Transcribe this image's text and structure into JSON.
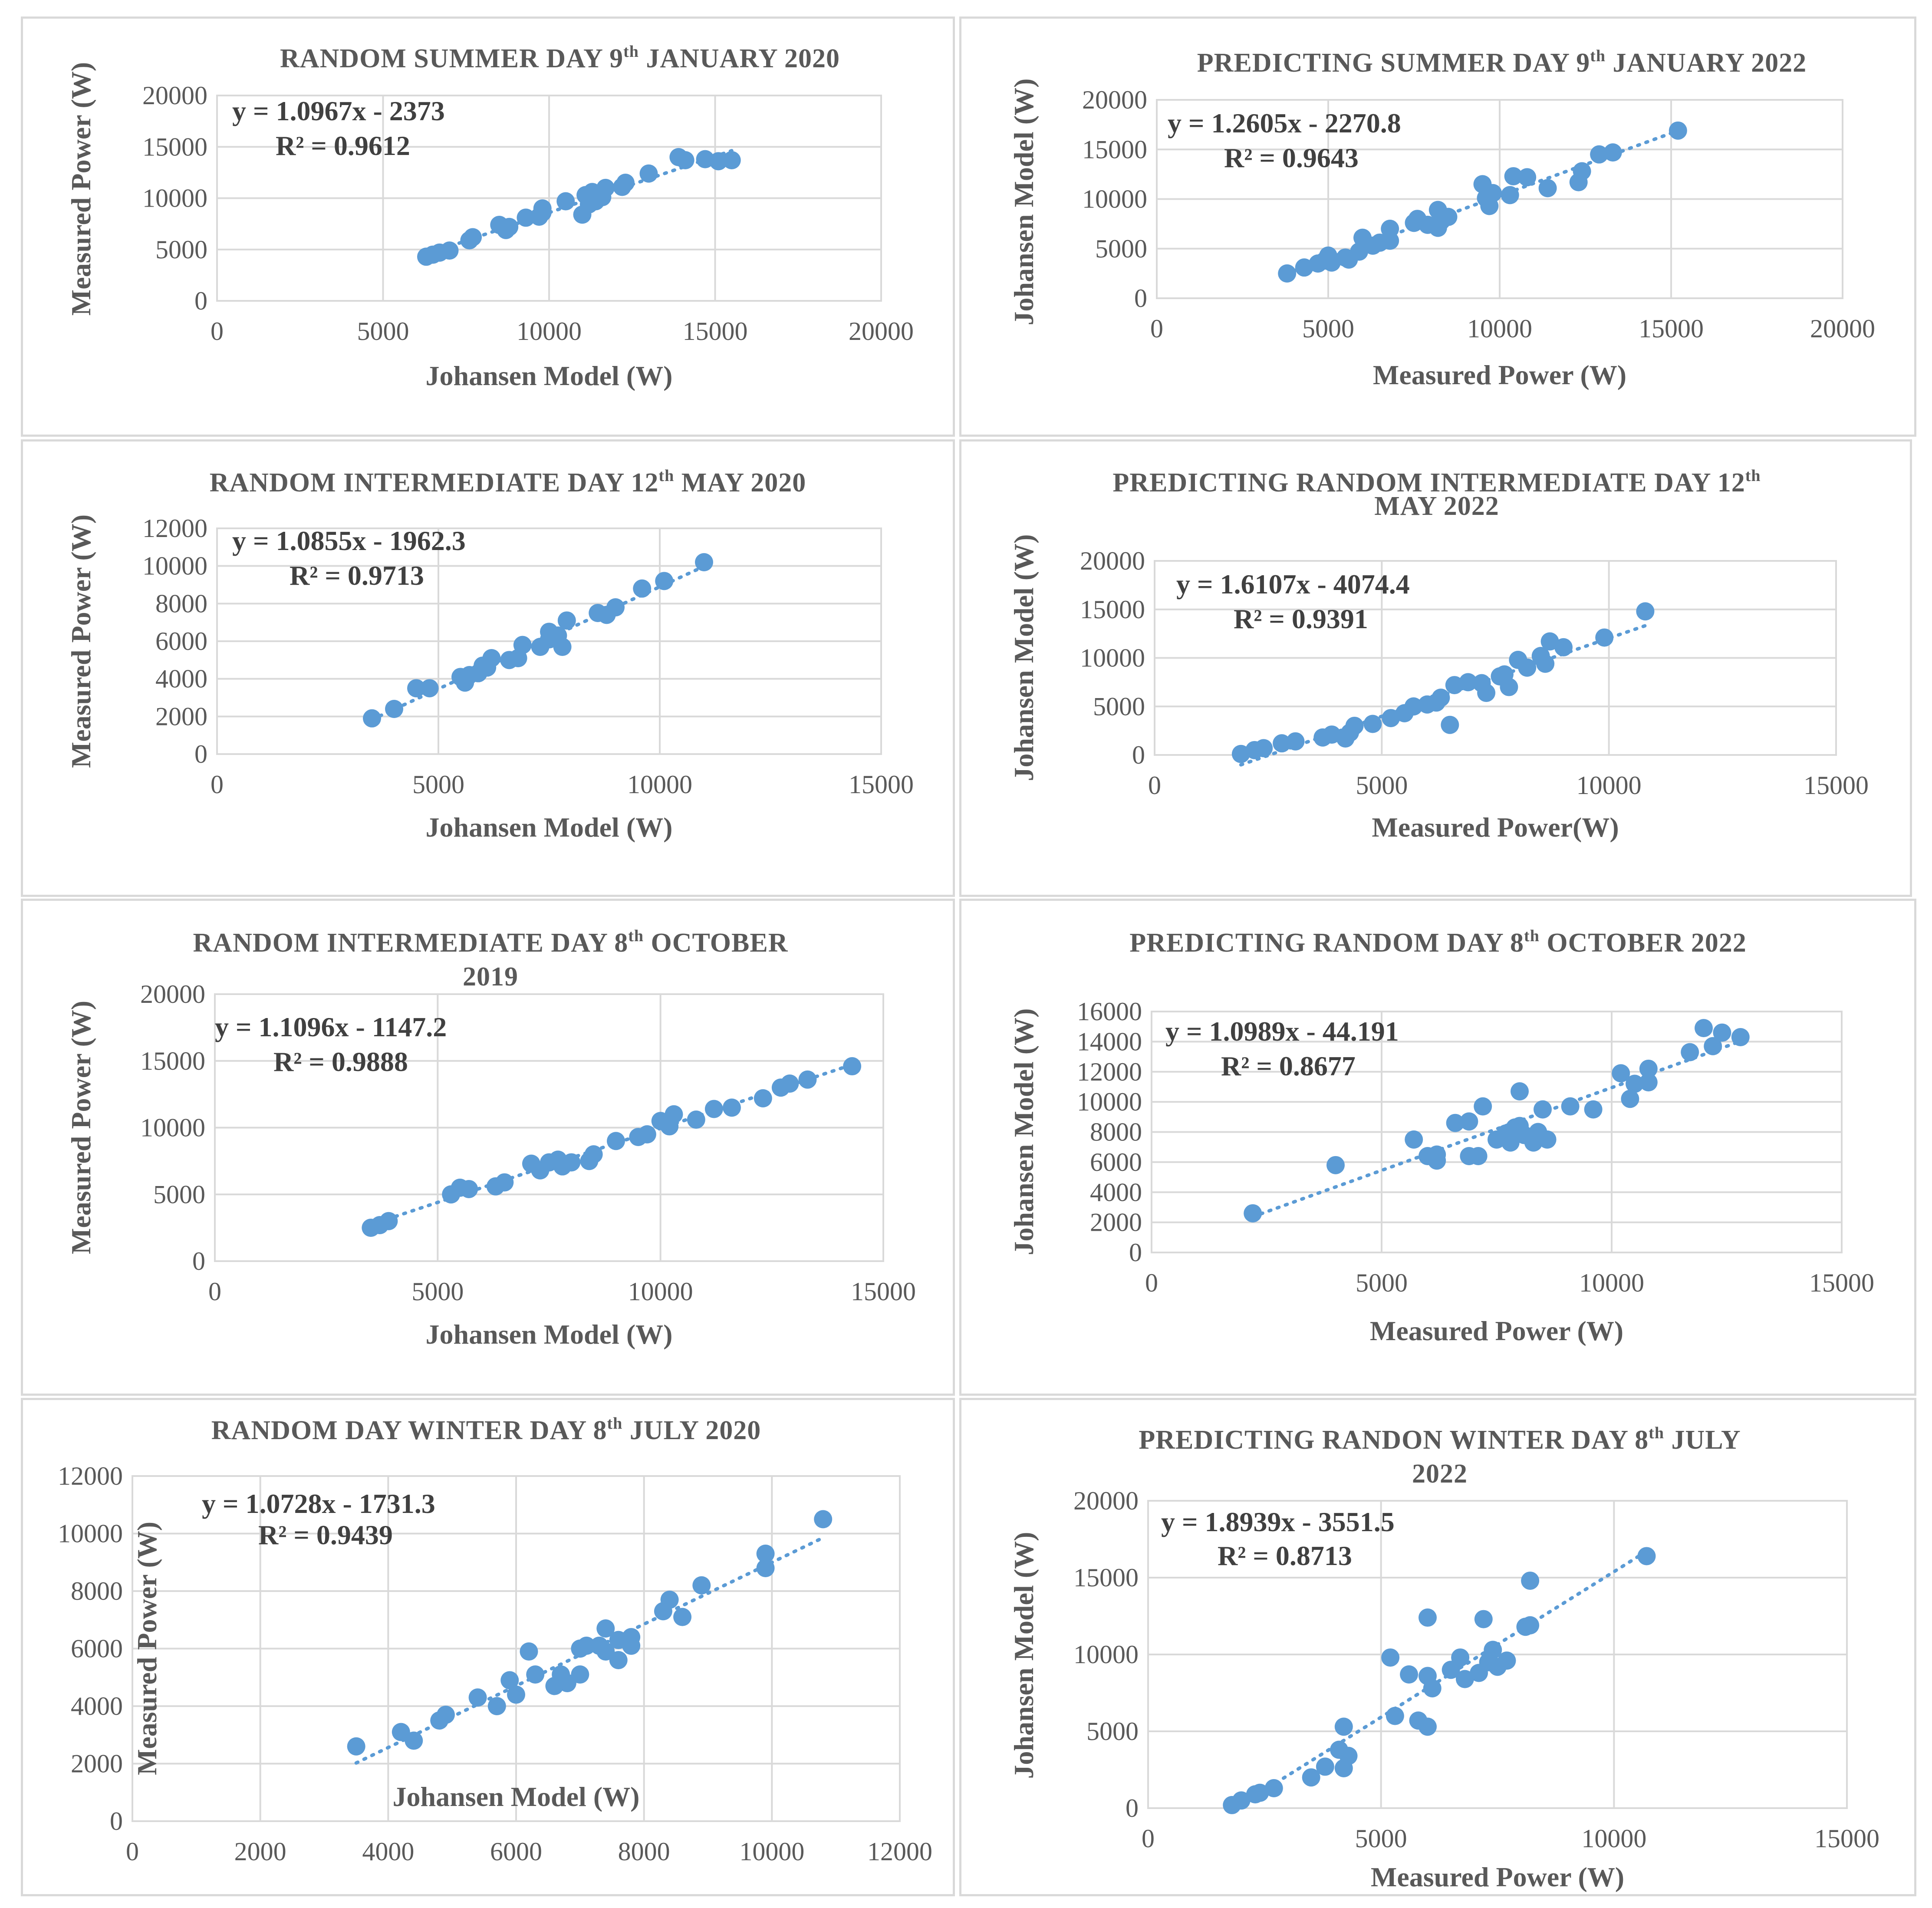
{
  "chart_data": [
    {
      "type": "scatter",
      "title": "RANDOM SUMMER DAY 9th JANUARY 2020",
      "xlabel": "Johansen Model (W)",
      "ylabel": "Measured Power (W)",
      "xlim": [
        0,
        20000
      ],
      "ylim": [
        0,
        20000
      ],
      "xticks": [
        0,
        5000,
        10000,
        15000,
        20000
      ],
      "yticks": [
        0,
        5000,
        10000,
        15000,
        20000
      ],
      "equation": "y = 1.0967x - 2373",
      "r2": "R² = 0.9612",
      "trend": {
        "slope": 1.0967,
        "intercept": -2373
      },
      "points": [
        [
          6300,
          4300
        ],
        [
          6500,
          4500
        ],
        [
          6700,
          4700
        ],
        [
          7000,
          4900
        ],
        [
          7600,
          5900
        ],
        [
          7700,
          6200
        ],
        [
          8500,
          7400
        ],
        [
          8700,
          6900
        ],
        [
          8800,
          7200
        ],
        [
          9300,
          8100
        ],
        [
          9700,
          8200
        ],
        [
          9800,
          8600
        ],
        [
          9800,
          9000
        ],
        [
          10500,
          9700
        ],
        [
          11000,
          8400
        ],
        [
          11100,
          10300
        ],
        [
          11200,
          9400
        ],
        [
          11300,
          10600
        ],
        [
          11400,
          9700
        ],
        [
          11600,
          10100
        ],
        [
          11700,
          11000
        ],
        [
          12200,
          11100
        ],
        [
          12300,
          11500
        ],
        [
          13000,
          12400
        ],
        [
          13900,
          14000
        ],
        [
          14100,
          13700
        ],
        [
          14700,
          13800
        ],
        [
          15100,
          13600
        ],
        [
          15500,
          13700
        ]
      ]
    },
    {
      "type": "scatter",
      "title": "PREDICTING SUMMER DAY 9th JANUARY 2022",
      "xlabel": "Measured Power (W)",
      "ylabel": "Johansen Model (W)",
      "xlim": [
        0,
        20000
      ],
      "ylim": [
        0,
        20000
      ],
      "xticks": [
        0,
        5000,
        10000,
        15000,
        20000
      ],
      "yticks": [
        0,
        5000,
        10000,
        15000,
        20000
      ],
      "equation": "y = 1.2605x - 2270.8",
      "r2": "R² = 0.9643",
      "trend": {
        "slope": 1.2605,
        "intercept": -2270.8
      },
      "points": [
        [
          3800,
          2500
        ],
        [
          4300,
          3100
        ],
        [
          4700,
          3500
        ],
        [
          4900,
          3800
        ],
        [
          5000,
          4300
        ],
        [
          5100,
          3600
        ],
        [
          5500,
          4100
        ],
        [
          5600,
          3900
        ],
        [
          5900,
          4700
        ],
        [
          6000,
          6100
        ],
        [
          6300,
          5300
        ],
        [
          6500,
          5600
        ],
        [
          6800,
          5800
        ],
        [
          6800,
          7000
        ],
        [
          7500,
          7600
        ],
        [
          7600,
          8000
        ],
        [
          7900,
          7400
        ],
        [
          8200,
          7100
        ],
        [
          8200,
          8900
        ],
        [
          8300,
          7800
        ],
        [
          8500,
          8200
        ],
        [
          9500,
          11500
        ],
        [
          9600,
          10100
        ],
        [
          9700,
          9300
        ],
        [
          9800,
          10600
        ],
        [
          10300,
          10400
        ],
        [
          10400,
          12300
        ],
        [
          10800,
          12200
        ],
        [
          11400,
          11100
        ],
        [
          12300,
          11700
        ],
        [
          12400,
          12800
        ],
        [
          12900,
          14500
        ],
        [
          13300,
          14700
        ],
        [
          15200,
          16900
        ]
      ]
    },
    {
      "type": "scatter",
      "title": "RANDOM INTERMEDIATE DAY 12th MAY 2020",
      "xlabel": "Johansen Model (W)",
      "ylabel": "Measured Power (W)",
      "xlim": [
        0,
        15000
      ],
      "ylim": [
        0,
        12000
      ],
      "xticks": [
        0,
        5000,
        10000,
        15000
      ],
      "yticks": [
        0,
        2000,
        4000,
        6000,
        8000,
        10000,
        12000
      ],
      "equation": "y = 1.0855x - 1962.3",
      "r2": "R² = 0.9713",
      "trend": {
        "slope": 1.0855,
        "intercept": -1962.3
      },
      "points": [
        [
          3500,
          1900
        ],
        [
          4000,
          2400
        ],
        [
          4500,
          3500
        ],
        [
          4800,
          3500
        ],
        [
          5500,
          4100
        ],
        [
          5600,
          3800
        ],
        [
          5700,
          4200
        ],
        [
          5900,
          4300
        ],
        [
          6000,
          4700
        ],
        [
          6100,
          4600
        ],
        [
          6200,
          5100
        ],
        [
          6600,
          5000
        ],
        [
          6800,
          5100
        ],
        [
          6900,
          5800
        ],
        [
          7300,
          5700
        ],
        [
          7500,
          6100
        ],
        [
          7500,
          6500
        ],
        [
          7700,
          6300
        ],
        [
          7800,
          5700
        ],
        [
          7900,
          7100
        ],
        [
          8600,
          7500
        ],
        [
          8800,
          7400
        ],
        [
          9000,
          7800
        ],
        [
          9600,
          8800
        ],
        [
          10100,
          9200
        ],
        [
          11000,
          10200
        ]
      ]
    },
    {
      "type": "scatter",
      "title": "PREDICTING RANDOM INTERMEDIATE DAY 12th MAY 2022",
      "xlabel": "Measured Power(W)",
      "ylabel": "Johansen Model (W)",
      "xlim": [
        0,
        15000
      ],
      "ylim": [
        0,
        20000
      ],
      "xticks": [
        0,
        5000,
        10000,
        15000
      ],
      "yticks": [
        0,
        5000,
        10000,
        15000,
        20000
      ],
      "equation": "y = 1.6107x - 4074.4",
      "r2": "R² = 0.9391",
      "trend": {
        "slope": 1.6107,
        "intercept": -4074.4
      },
      "points": [
        [
          1900,
          100
        ],
        [
          2200,
          500
        ],
        [
          2400,
          700
        ],
        [
          2800,
          1200
        ],
        [
          3100,
          1400
        ],
        [
          3700,
          1800
        ],
        [
          3900,
          2100
        ],
        [
          4200,
          1700
        ],
        [
          4300,
          2300
        ],
        [
          4400,
          3000
        ],
        [
          4800,
          3200
        ],
        [
          5200,
          3800
        ],
        [
          5500,
          4300
        ],
        [
          5700,
          5000
        ],
        [
          6000,
          5200
        ],
        [
          6200,
          5400
        ],
        [
          6300,
          5900
        ],
        [
          6500,
          3100
        ],
        [
          6600,
          7200
        ],
        [
          6900,
          7500
        ],
        [
          7200,
          7400
        ],
        [
          7300,
          6400
        ],
        [
          7600,
          8100
        ],
        [
          7700,
          8300
        ],
        [
          7800,
          7000
        ],
        [
          8000,
          9800
        ],
        [
          8200,
          9000
        ],
        [
          8500,
          10200
        ],
        [
          8600,
          9400
        ],
        [
          8700,
          11700
        ],
        [
          9000,
          11100
        ],
        [
          9900,
          12100
        ],
        [
          10800,
          14800
        ]
      ]
    },
    {
      "type": "scatter",
      "title": "RANDOM INTERMEDIATE DAY 8th OCTOBER 2019",
      "xlabel": "Johansen Model (W)",
      "ylabel": "Measured Power (W)",
      "xlim": [
        0,
        15000
      ],
      "ylim": [
        0,
        20000
      ],
      "xticks": [
        0,
        5000,
        10000,
        15000
      ],
      "yticks": [
        0,
        5000,
        10000,
        15000,
        20000
      ],
      "equation": "y = 1.1096x - 1147.2",
      "r2": "R² = 0.9888",
      "trend": {
        "slope": 1.1096,
        "intercept": -1147.2
      },
      "points": [
        [
          3500,
          2500
        ],
        [
          3700,
          2700
        ],
        [
          3900,
          3000
        ],
        [
          5300,
          5000
        ],
        [
          5500,
          5500
        ],
        [
          5700,
          5400
        ],
        [
          6300,
          5600
        ],
        [
          6500,
          5900
        ],
        [
          7100,
          7300
        ],
        [
          7300,
          6800
        ],
        [
          7500,
          7400
        ],
        [
          7700,
          7600
        ],
        [
          7800,
          7100
        ],
        [
          8000,
          7400
        ],
        [
          8400,
          7500
        ],
        [
          8500,
          8000
        ],
        [
          9000,
          9000
        ],
        [
          9500,
          9300
        ],
        [
          9700,
          9500
        ],
        [
          10000,
          10500
        ],
        [
          10200,
          10100
        ],
        [
          10300,
          11000
        ],
        [
          10800,
          10600
        ],
        [
          11200,
          11400
        ],
        [
          11600,
          11500
        ],
        [
          12300,
          12200
        ],
        [
          12700,
          13000
        ],
        [
          12900,
          13300
        ],
        [
          13300,
          13600
        ],
        [
          14300,
          14600
        ]
      ]
    },
    {
      "type": "scatter",
      "title": "PREDICTING RANDOM DAY 8th OCTOBER 2022",
      "xlabel": "Measured Power (W)",
      "ylabel": "Johansen Model (W)",
      "xlim": [
        0,
        15000
      ],
      "ylim": [
        0,
        16000
      ],
      "xticks": [
        0,
        5000,
        10000,
        15000
      ],
      "yticks": [
        0,
        2000,
        4000,
        6000,
        8000,
        10000,
        12000,
        14000,
        16000
      ],
      "equation": "y = 1.0989x - 44.191",
      "r2": "R² = 0.8677",
      "trend": {
        "slope": 1.0989,
        "intercept": -44.191
      },
      "points": [
        [
          2200,
          2600
        ],
        [
          4000,
          5800
        ],
        [
          5700,
          7500
        ],
        [
          6000,
          6400
        ],
        [
          6200,
          6100
        ],
        [
          6200,
          6500
        ],
        [
          6600,
          8600
        ],
        [
          6900,
          6400
        ],
        [
          6900,
          8700
        ],
        [
          7100,
          6400
        ],
        [
          7200,
          9700
        ],
        [
          7500,
          7500
        ],
        [
          7700,
          7900
        ],
        [
          7800,
          7300
        ],
        [
          7900,
          8300
        ],
        [
          8000,
          10700
        ],
        [
          8000,
          8400
        ],
        [
          8100,
          7800
        ],
        [
          8300,
          7300
        ],
        [
          8400,
          8000
        ],
        [
          8500,
          9500
        ],
        [
          8600,
          7500
        ],
        [
          9100,
          9700
        ],
        [
          9600,
          9500
        ],
        [
          10200,
          11900
        ],
        [
          10400,
          10200
        ],
        [
          10500,
          11200
        ],
        [
          10800,
          12200
        ],
        [
          10800,
          11300
        ],
        [
          11700,
          13300
        ],
        [
          12000,
          14900
        ],
        [
          12200,
          13700
        ],
        [
          12400,
          14600
        ],
        [
          12800,
          14300
        ]
      ]
    },
    {
      "type": "scatter",
      "title": "RANDOM DAY WINTER DAY 8th JULY 2020",
      "xlabel": "Johansen Model (W)",
      "ylabel": "Measured Power (W)",
      "xlim": [
        0,
        12000
      ],
      "ylim": [
        0,
        12000
      ],
      "xticks": [
        0,
        2000,
        4000,
        6000,
        8000,
        10000,
        12000
      ],
      "yticks": [
        0,
        2000,
        4000,
        6000,
        8000,
        10000,
        12000
      ],
      "equation": "y = 1.0728x - 1731.3",
      "r2": "R² = 0.9439",
      "trend": {
        "slope": 1.0728,
        "intercept": -1731.3
      },
      "points": [
        [
          3500,
          2600
        ],
        [
          4200,
          3100
        ],
        [
          4400,
          2800
        ],
        [
          4800,
          3500
        ],
        [
          4900,
          3700
        ],
        [
          5400,
          4300
        ],
        [
          5700,
          4000
        ],
        [
          5900,
          4900
        ],
        [
          6000,
          4400
        ],
        [
          6200,
          5900
        ],
        [
          6300,
          5100
        ],
        [
          6600,
          4700
        ],
        [
          6700,
          5100
        ],
        [
          6800,
          4800
        ],
        [
          7000,
          5100
        ],
        [
          7000,
          6000
        ],
        [
          7100,
          6100
        ],
        [
          7300,
          6100
        ],
        [
          7400,
          5900
        ],
        [
          7400,
          6700
        ],
        [
          7600,
          6300
        ],
        [
          7600,
          5600
        ],
        [
          7800,
          6100
        ],
        [
          7800,
          6400
        ],
        [
          8300,
          7300
        ],
        [
          8400,
          7700
        ],
        [
          8600,
          7100
        ],
        [
          8900,
          8200
        ],
        [
          9900,
          8800
        ],
        [
          9900,
          9300
        ],
        [
          10800,
          10500
        ]
      ]
    },
    {
      "type": "scatter",
      "title": "PREDICTING RANDON WINTER DAY 8th JULY 2022",
      "xlabel": "Measured Power (W)",
      "ylabel": "Johansen Model (W)",
      "xlim": [
        0,
        15000
      ],
      "ylim": [
        0,
        20000
      ],
      "xticks": [
        0,
        5000,
        10000,
        15000
      ],
      "yticks": [
        0,
        5000,
        10000,
        15000,
        20000
      ],
      "equation": "y = 1.8939x - 3551.5",
      "r2": "R² = 0.8713",
      "trend": {
        "slope": 1.8939,
        "intercept": -3551.5
      },
      "points": [
        [
          1800,
          200
        ],
        [
          2000,
          500
        ],
        [
          2300,
          900
        ],
        [
          2400,
          1000
        ],
        [
          2700,
          1300
        ],
        [
          3500,
          2000
        ],
        [
          3800,
          2700
        ],
        [
          4100,
          3800
        ],
        [
          4200,
          2600
        ],
        [
          4200,
          5300
        ],
        [
          4300,
          3400
        ],
        [
          5200,
          9800
        ],
        [
          5300,
          6000
        ],
        [
          5600,
          8700
        ],
        [
          5800,
          5700
        ],
        [
          6000,
          12400
        ],
        [
          6000,
          8600
        ],
        [
          6000,
          5300
        ],
        [
          6100,
          7800
        ],
        [
          6500,
          9000
        ],
        [
          6700,
          9800
        ],
        [
          6800,
          8400
        ],
        [
          7100,
          8800
        ],
        [
          7200,
          12300
        ],
        [
          7300,
          9500
        ],
        [
          7400,
          10300
        ],
        [
          7500,
          9200
        ],
        [
          7700,
          9600
        ],
        [
          8100,
          11800
        ],
        [
          8200,
          11900
        ],
        [
          8200,
          14800
        ],
        [
          10700,
          16400
        ]
      ]
    }
  ]
}
